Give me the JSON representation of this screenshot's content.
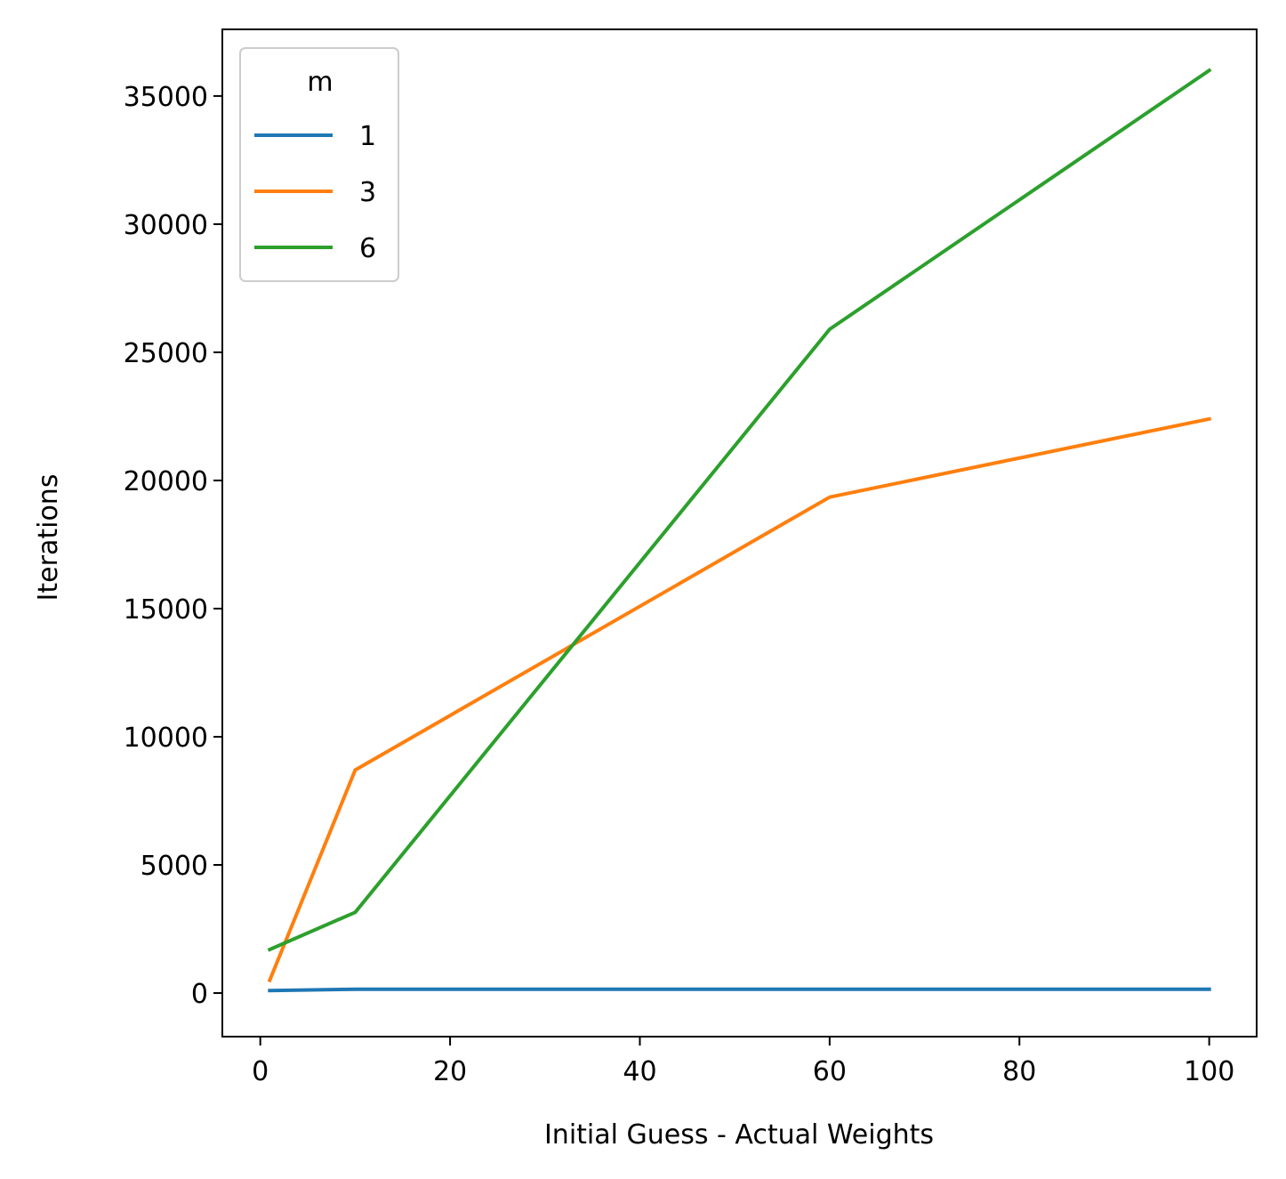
{
  "chart_data": {
    "type": "line",
    "xlabel": "Initial Guess - Actual Weights",
    "ylabel": "Iterations",
    "xlim": [
      -4,
      105
    ],
    "ylim": [
      -1700,
      37600
    ],
    "xticks": [
      0,
      20,
      40,
      60,
      80,
      100
    ],
    "yticks": [
      0,
      5000,
      10000,
      15000,
      20000,
      25000,
      30000,
      35000
    ],
    "grid": false,
    "legend": {
      "title": "m",
      "placement": "top-left"
    },
    "x": [
      1,
      10,
      60,
      100
    ],
    "series": [
      {
        "name": "1",
        "color": "#1f77b4",
        "values": [
          100,
          150,
          150,
          150
        ]
      },
      {
        "name": "3",
        "color": "#ff7f0e",
        "values": [
          500,
          8700,
          19350,
          22400
        ]
      },
      {
        "name": "6",
        "color": "#2ca02c",
        "values": [
          1700,
          3150,
          25900,
          36000
        ]
      }
    ]
  }
}
